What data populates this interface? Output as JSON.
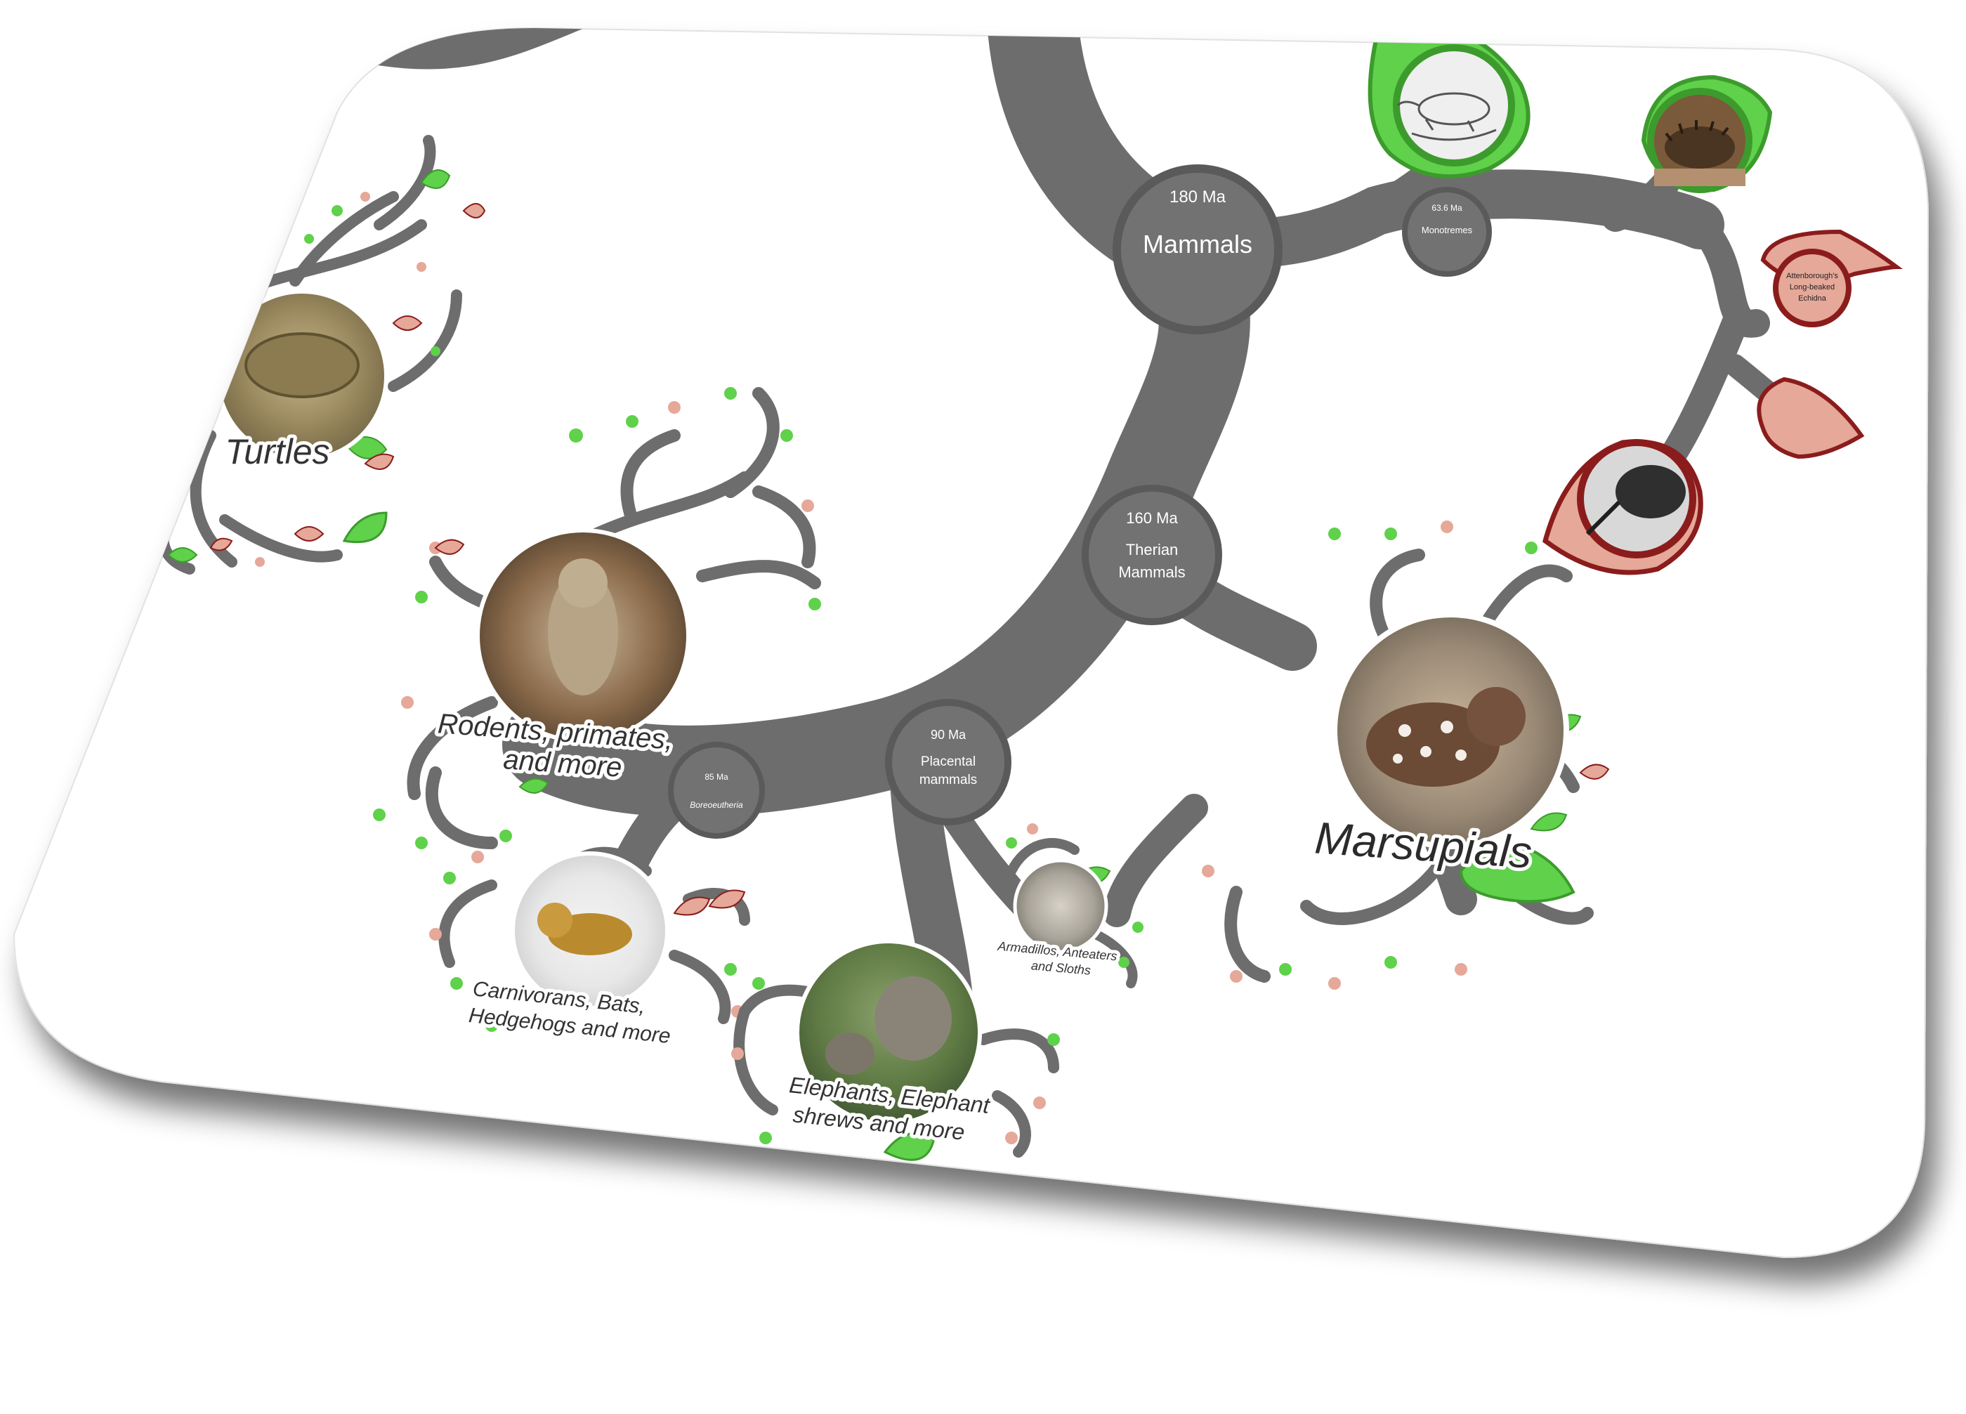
{
  "colors": {
    "branch": "#6d6d6d",
    "node_fill": "#727272",
    "node_ring": "#5a5a5a",
    "leaf_green": "#5fd14a",
    "leaf_green_border": "#3c9b2c",
    "leaf_red": "#e5a899",
    "leaf_red_border": "#8b1c1c",
    "card_bg": "#ffffff",
    "label_text": "#333333"
  },
  "nodes": {
    "mammals": {
      "age": "180 Ma",
      "name": "Mammals"
    },
    "monotremes": {
      "age": "63.6 Ma",
      "name": "Monotremes"
    },
    "therian": {
      "age": "160 Ma",
      "name_line1": "Therian",
      "name_line2": "Mammals"
    },
    "placental": {
      "age": "90 Ma",
      "name_line1": "Placental",
      "name_line2": "mammals"
    },
    "boreoeutheria": {
      "age": "85 Ma",
      "name": "Boreoeutheria"
    }
  },
  "leaves": {
    "echidna": {
      "line1": "Attenborough's",
      "line2": "Long-beaked",
      "line3": "Echidna"
    }
  },
  "clades": {
    "turtles": {
      "label": "Turtles",
      "image_icon": "turtle-photo"
    },
    "rodents": {
      "line1": "Rodents, primates,",
      "line2": "and more",
      "image_icon": "rodent-photo"
    },
    "carnivorans": {
      "line1": "Carnivorans, Bats,",
      "line2": "Hedgehogs and more",
      "image_icon": "marten-photo"
    },
    "elephants": {
      "line1": "Elephants, Elephant",
      "line2": "shrews and more",
      "image_icon": "elephant-photo"
    },
    "armadillos": {
      "line1": "Armadillos, Anteaters",
      "line2": "and Sloths",
      "image_icon": "armadillo-photo"
    },
    "marsupials": {
      "label": "Marsupials",
      "image_icon": "quoll-photo"
    }
  },
  "monotreme_leaves": [
    {
      "icon": "platypus-sketch",
      "status": "green"
    },
    {
      "icon": "echidna-photo",
      "status": "green"
    },
    {
      "icon": "echidna-sketch",
      "status": "red"
    }
  ]
}
